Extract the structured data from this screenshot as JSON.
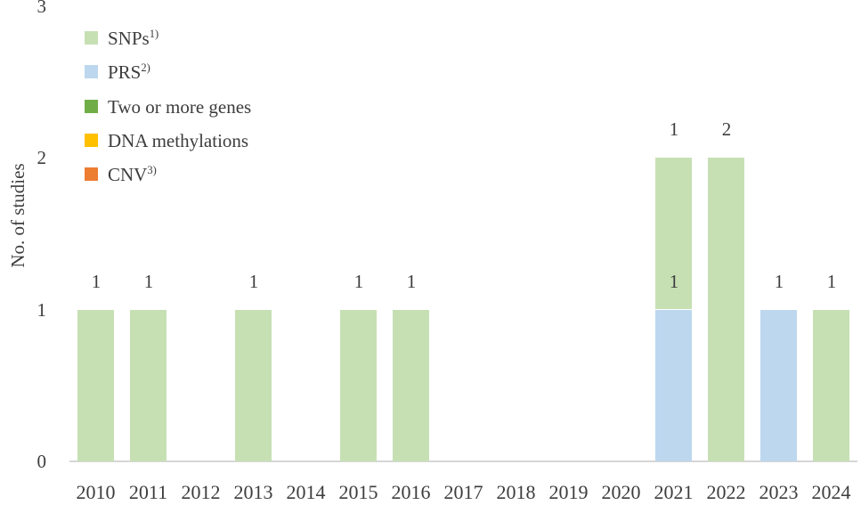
{
  "y_axis": {
    "title": "No. of studies",
    "ticks": [
      "0",
      "1",
      "2",
      "3"
    ]
  },
  "x_axis": {
    "labels": [
      "2010",
      "2011",
      "2012",
      "2013",
      "2014",
      "2015",
      "2016",
      "2017",
      "2018",
      "2019",
      "2020",
      "2021",
      "2022",
      "2023",
      "2024"
    ]
  },
  "legend": {
    "position": "upper-left-inside",
    "entries": [
      {
        "label": "SNPs",
        "sup": "1)",
        "color": "#c6e0b4"
      },
      {
        "label": "PRS",
        "sup": "2)",
        "color": "#bdd7ee"
      },
      {
        "label": "Two or more genes",
        "sup": "",
        "color": "#70ad47"
      },
      {
        "label": "DNA methylations",
        "sup": "",
        "color": "#ffc000"
      },
      {
        "label": "CNV",
        "sup": "3)",
        "color": "#ed7d31"
      }
    ]
  },
  "chart_data": {
    "type": "bar",
    "stacked": true,
    "title": "",
    "xlabel": "",
    "ylabel": "No. of studies",
    "ylim": [
      0,
      3
    ],
    "grid": false,
    "data_labels": true,
    "legend_position": "upper-left-inside",
    "categories": [
      "2010",
      "2011",
      "2012",
      "2013",
      "2014",
      "2015",
      "2016",
      "2017",
      "2018",
      "2019",
      "2020",
      "2021",
      "2022",
      "2023",
      "2024"
    ],
    "series": [
      {
        "name": "SNPs",
        "color": "#c6e0b4",
        "values": [
          1,
          1,
          0,
          1,
          0,
          1,
          1,
          0,
          0,
          0,
          0,
          1,
          2,
          0,
          1
        ]
      },
      {
        "name": "PRS",
        "color": "#bdd7ee",
        "values": [
          0,
          0,
          0,
          0,
          0,
          0,
          0,
          0,
          0,
          0,
          0,
          1,
          0,
          1,
          0
        ]
      },
      {
        "name": "Two or more genes",
        "color": "#70ad47",
        "values": [
          0,
          0,
          0,
          0,
          0,
          0,
          0,
          0,
          0,
          0,
          0,
          0,
          0,
          0,
          0
        ]
      },
      {
        "name": "DNA methylations",
        "color": "#ffc000",
        "values": [
          0,
          0,
          0,
          0,
          0,
          0,
          0,
          0,
          0,
          0,
          0,
          0,
          0,
          0,
          0
        ]
      },
      {
        "name": "CNV",
        "color": "#ed7d31",
        "values": [
          0,
          0,
          0,
          0,
          0,
          0,
          0,
          0,
          0,
          0,
          0,
          0,
          0,
          0,
          0
        ]
      }
    ],
    "stack_order": [
      "PRS",
      "SNPs",
      "Two or more genes",
      "DNA methylations",
      "CNV"
    ],
    "totals_by_year": [
      1,
      1,
      0,
      1,
      0,
      1,
      1,
      0,
      0,
      0,
      0,
      2,
      2,
      1,
      1
    ]
  }
}
